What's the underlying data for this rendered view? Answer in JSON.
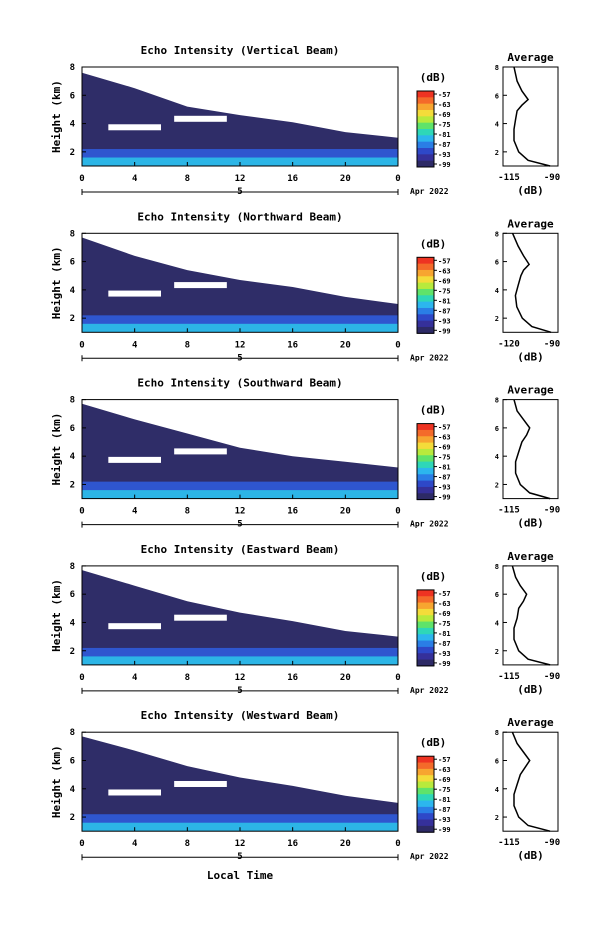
{
  "xlabel": "Local Time",
  "date_label": "Apr 2022",
  "colorbar_unit": "(dB)",
  "colorbar_ticks": [
    "-57",
    "-63",
    "-69",
    "-75",
    "-81",
    "-87",
    "-93",
    "-99"
  ],
  "colorbar_colors": [
    "#ee3322",
    "#f46a2a",
    "#f7a530",
    "#f4dc3a",
    "#b8ea3c",
    "#5fe36a",
    "#2ed7b8",
    "#2cb6ee",
    "#2a7ee6",
    "#2e48c8",
    "#35309a",
    "#2d2a66"
  ],
  "background_colors": {
    "low_echo": "#2f2d68",
    "mid": "#2f56cf",
    "strong": "#2cb5e6"
  },
  "x_ticks": [
    "0",
    "4",
    "8",
    "12",
    "16",
    "20",
    "0"
  ],
  "x_sub_label": "5",
  "y_ticks": [
    "2",
    "4",
    "6",
    "8"
  ],
  "ylabel": "Height (km)",
  "avg_title": "Average",
  "avg_xlabel": "(dB)",
  "panels": [
    {
      "title": "Echo Intensity (Vertical Beam)",
      "avg_xticks": [
        "-115",
        "-90"
      ]
    },
    {
      "title": "Echo Intensity (Northward Beam)",
      "avg_xticks": [
        "-120",
        "-90"
      ]
    },
    {
      "title": "Echo Intensity (Southward Beam)",
      "avg_xticks": [
        "-115",
        "-90"
      ]
    },
    {
      "title": "Echo Intensity (Eastward Beam)",
      "avg_xticks": [
        "-115",
        "-90"
      ]
    },
    {
      "title": "Echo Intensity (Westward Beam)",
      "avg_xticks": [
        "-115",
        "-90"
      ]
    }
  ],
  "chart_data": [
    {
      "type": "heatmap",
      "title": "Echo Intensity (Vertical Beam)",
      "xlabel": "",
      "ylabel": "Height (km)",
      "xlim": [
        0,
        24
      ],
      "ylim": [
        1,
        8
      ],
      "unit": "dB",
      "clim": [
        -99,
        -57
      ],
      "cloud_top_km": [
        [
          0,
          7.6
        ],
        [
          4,
          6.5
        ],
        [
          8,
          5.2
        ],
        [
          12,
          4.6
        ],
        [
          16,
          4.1
        ],
        [
          20,
          3.4
        ],
        [
          24,
          3.0
        ]
      ],
      "average_profile": {
        "x": [
          -90,
          -104,
          -110,
          -113,
          -113,
          -112,
          -111,
          -108,
          -104,
          -108,
          -111,
          -113
        ],
        "height_km": [
          1.0,
          1.4,
          2.0,
          2.8,
          3.6,
          4.3,
          4.9,
          5.3,
          5.7,
          6.3,
          7.0,
          8.0
        ]
      }
    },
    {
      "type": "heatmap",
      "title": "Echo Intensity (Northward Beam)",
      "xlabel": "",
      "ylabel": "Height (km)",
      "xlim": [
        0,
        24
      ],
      "ylim": [
        1,
        8
      ],
      "unit": "dB",
      "clim": [
        -99,
        -57
      ],
      "cloud_top_km": [
        [
          0,
          7.7
        ],
        [
          4,
          6.4
        ],
        [
          8,
          5.4
        ],
        [
          12,
          4.7
        ],
        [
          16,
          4.2
        ],
        [
          20,
          3.5
        ],
        [
          24,
          3.0
        ]
      ],
      "average_profile": {
        "x": [
          -90,
          -104,
          -111,
          -115,
          -116,
          -114,
          -112,
          -110,
          -106,
          -110,
          -114,
          -118
        ],
        "height_km": [
          1.0,
          1.4,
          2.0,
          2.8,
          3.6,
          4.3,
          5.0,
          5.4,
          5.8,
          6.4,
          7.1,
          8.0
        ]
      }
    },
    {
      "type": "heatmap",
      "title": "Echo Intensity (Southward Beam)",
      "xlabel": "",
      "ylabel": "Height (km)",
      "xlim": [
        0,
        24
      ],
      "ylim": [
        1,
        8
      ],
      "unit": "dB",
      "clim": [
        -99,
        -57
      ],
      "cloud_top_km": [
        [
          0,
          7.7
        ],
        [
          4,
          6.6
        ],
        [
          8,
          5.6
        ],
        [
          12,
          4.6
        ],
        [
          16,
          4.0
        ],
        [
          20,
          3.6
        ],
        [
          24,
          3.2
        ]
      ],
      "average_profile": {
        "x": [
          -90,
          -103,
          -109,
          -112,
          -112,
          -110,
          -108,
          -105,
          -103,
          -107,
          -111,
          -113
        ],
        "height_km": [
          1.0,
          1.4,
          2.0,
          2.8,
          3.6,
          4.3,
          5.0,
          5.5,
          6.0,
          6.6,
          7.2,
          8.0
        ]
      }
    },
    {
      "type": "heatmap",
      "title": "Echo Intensity (Eastward Beam)",
      "xlabel": "",
      "ylabel": "Height (km)",
      "xlim": [
        0,
        24
      ],
      "ylim": [
        1,
        8
      ],
      "unit": "dB",
      "clim": [
        -99,
        -57
      ],
      "cloud_top_km": [
        [
          0,
          7.7
        ],
        [
          4,
          6.6
        ],
        [
          8,
          5.5
        ],
        [
          12,
          4.7
        ],
        [
          16,
          4.1
        ],
        [
          20,
          3.4
        ],
        [
          24,
          3.0
        ]
      ],
      "average_profile": {
        "x": [
          -90,
          -104,
          -110,
          -113,
          -113,
          -111,
          -110,
          -107,
          -105,
          -109,
          -112,
          -114
        ],
        "height_km": [
          1.0,
          1.4,
          2.0,
          2.8,
          3.6,
          4.3,
          5.0,
          5.5,
          6.0,
          6.6,
          7.2,
          8.0
        ]
      }
    },
    {
      "type": "heatmap",
      "title": "Echo Intensity (Westward Beam)",
      "xlabel": "Local Time",
      "ylabel": "Height (km)",
      "xlim": [
        0,
        24
      ],
      "ylim": [
        1,
        8
      ],
      "unit": "dB",
      "clim": [
        -99,
        -57
      ],
      "cloud_top_km": [
        [
          0,
          7.7
        ],
        [
          4,
          6.7
        ],
        [
          8,
          5.6
        ],
        [
          12,
          4.8
        ],
        [
          16,
          4.2
        ],
        [
          20,
          3.5
        ],
        [
          24,
          3.0
        ]
      ],
      "average_profile": {
        "x": [
          -90,
          -104,
          -110,
          -113,
          -113,
          -111,
          -109,
          -106,
          -103,
          -107,
          -111,
          -114
        ],
        "height_km": [
          1.0,
          1.4,
          2.0,
          2.8,
          3.6,
          4.3,
          5.0,
          5.5,
          6.0,
          6.6,
          7.2,
          8.0
        ]
      }
    }
  ]
}
